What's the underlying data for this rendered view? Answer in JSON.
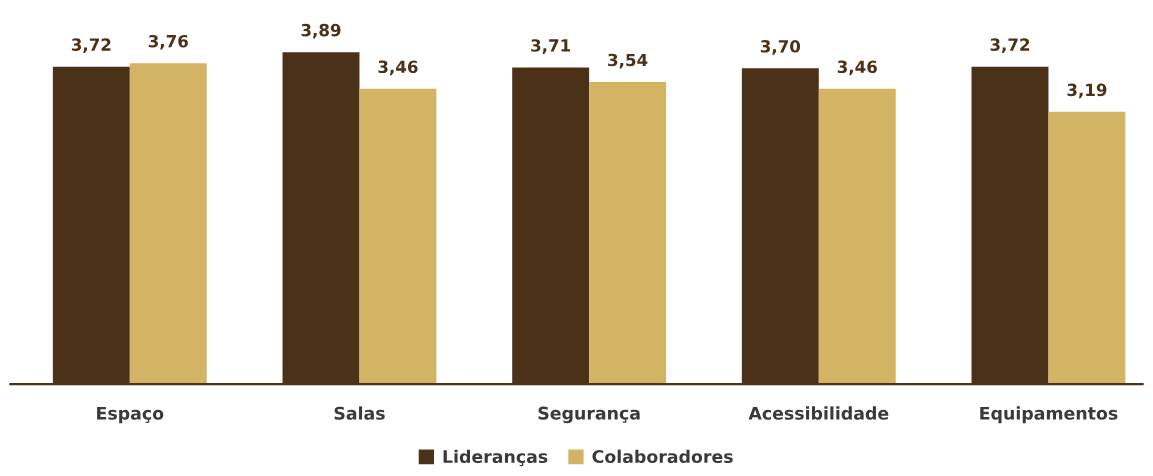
{
  "chart_data": {
    "type": "bar",
    "categories": [
      "Espaço",
      "Salas",
      "Segurança",
      "Acessibilidade",
      "Equipamentos"
    ],
    "series": [
      {
        "name": "Lideranças",
        "color": "#4a3118",
        "values": [
          3.72,
          3.89,
          3.71,
          3.7,
          3.72
        ],
        "value_labels": [
          "3,72",
          "3,89",
          "3,71",
          "3,70",
          "3,72"
        ]
      },
      {
        "name": "Colaboradores",
        "color": "#d2b464",
        "values": [
          3.76,
          3.46,
          3.54,
          3.46,
          3.19
        ],
        "value_labels": [
          "3,76",
          "3,46",
          "3,54",
          "3,46",
          "3,19"
        ]
      }
    ],
    "tick_labels": "x",
    "grid": false,
    "legend": "bottom"
  }
}
